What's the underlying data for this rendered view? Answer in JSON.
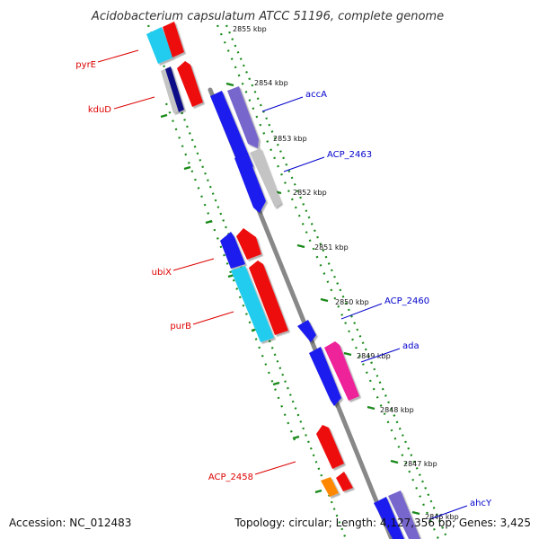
{
  "title": "Acidobacterium capsulatum ATCC 51196, complete genome",
  "footer": {
    "accession": "Accession: NC_012483",
    "summary": "Topology: circular; Length: 4,127,356 bp; Genes: 3,425"
  },
  "ticks": [
    "2855 kbp",
    "2854 kbp",
    "2853 kbp",
    "2852 kbp",
    "2851 kbp",
    "2850 kbp",
    "2849 kbp",
    "2848 kbp",
    "2847 kbp",
    "2846 kbp"
  ],
  "gene_labels": {
    "pyrE": "pyrE",
    "kduD": "kduD",
    "ubiX": "ubiX",
    "purB": "purB",
    "ACP_2458": "ACP_2458",
    "accA": "accA",
    "ACP_2463": "ACP_2463",
    "ACP_2460": "ACP_2460",
    "ada": "ada",
    "ahcY": "ahcY"
  },
  "colors": {
    "backbone": "#888888",
    "dotted_track": "#1a8a1a",
    "reverse_label": "#dd0000",
    "forward_label": "#0000cc",
    "blue": "#1a1aee",
    "red": "#ee1111",
    "cyan": "#22ccee",
    "purple": "#7766cc",
    "gray": "#c4c4c4",
    "magenta": "#ee2299",
    "orange": "#ff8800",
    "navy": "#111188"
  }
}
